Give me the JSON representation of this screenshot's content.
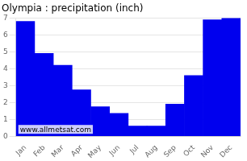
{
  "chart_data": {
    "type": "bar",
    "title": "Olympia : precipitation (inch)",
    "categories": [
      "Jan",
      "Feb",
      "Mar",
      "Apr",
      "May",
      "Jun",
      "Jul",
      "Aug",
      "Sep",
      "Oct",
      "Nov",
      "Dec"
    ],
    "values": [
      6.8,
      4.9,
      4.2,
      2.75,
      1.75,
      1.35,
      0.6,
      0.6,
      1.9,
      3.6,
      6.9,
      7.0
    ],
    "color": "#0000ee",
    "ylim": [
      0,
      7
    ],
    "yticks": [
      0,
      1,
      2,
      3,
      4,
      5,
      6,
      7
    ],
    "grid": true,
    "annotations": [
      "www.allmetsat.com"
    ]
  }
}
